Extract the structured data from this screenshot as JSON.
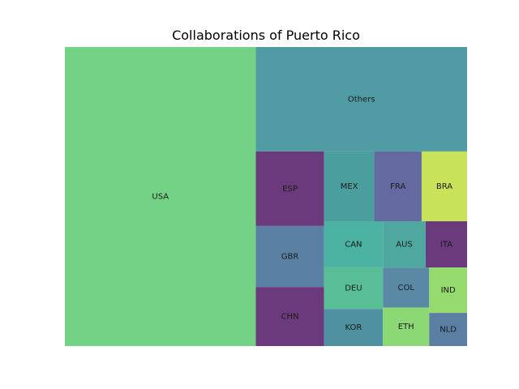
{
  "chart_data": {
    "type": "treemap",
    "title": "Collaborations of Puerto Rico",
    "grid": false,
    "legend": "none",
    "tiles": [
      {
        "label": "AUS",
        "value": 3.0,
        "color": "#4fa8a0"
      },
      {
        "label": "BRA",
        "value": 4.8,
        "color": "#c8e25a"
      },
      {
        "label": "CAN",
        "value": 4.1,
        "color": "#4bb1a0"
      },
      {
        "label": "CHN",
        "value": 6.1,
        "color": "#6b3a7c"
      },
      {
        "label": "COL",
        "value": 2.8,
        "color": "#5a89a6"
      },
      {
        "label": "DEU",
        "value": 3.7,
        "color": "#58be96"
      },
      {
        "label": "ITA",
        "value": 2.9,
        "color": "#6b3a7c"
      },
      {
        "label": "KOR",
        "value": 3.3,
        "color": "#4f91a0"
      },
      {
        "label": "MEX",
        "value": 5.3,
        "color": "#4b9e9e"
      },
      {
        "label": "NLD",
        "value": 1.9,
        "color": "#5a7fa3"
      },
      {
        "label": "ESP",
        "value": 7.7,
        "color": "#6b3a7c"
      },
      {
        "label": "ETH",
        "value": 2.7,
        "color": "#8bd874"
      },
      {
        "label": "FRA",
        "value": 5.0,
        "color": "#646aa0"
      },
      {
        "label": "GBR",
        "value": 6.3,
        "color": "#5a80a4"
      },
      {
        "label": "IND",
        "value": 2.6,
        "color": "#95da6c"
      },
      {
        "label": "USA",
        "value": 86.4,
        "color": "#74d287"
      },
      {
        "label": "Others",
        "value": 33.4,
        "color": "#519ba4"
      }
    ]
  }
}
